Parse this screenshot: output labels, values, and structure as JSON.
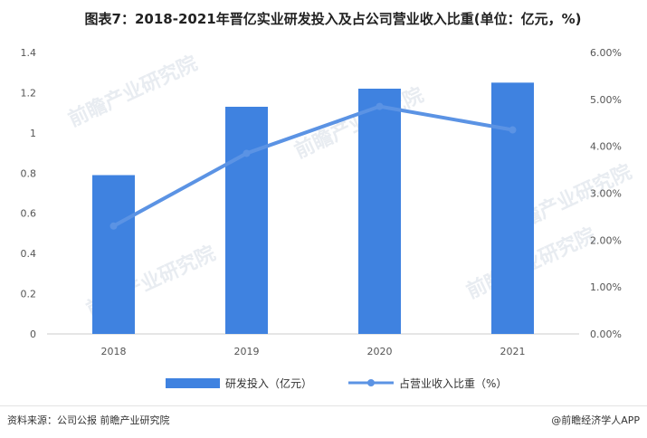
{
  "chart_data": {
    "type": "bar+line",
    "title": "图表7：2018-2021年晋亿实业研发投入及占公司营业收入比重(单位：亿元，%)",
    "categories": [
      "2018",
      "2019",
      "2020",
      "2021"
    ],
    "series": [
      {
        "name": "研发投入（亿元）",
        "type": "bar",
        "axis": "left",
        "values": [
          0.79,
          1.13,
          1.22,
          1.25
        ],
        "color": "#3f82e0"
      },
      {
        "name": "占营业收入比重（%）",
        "type": "line",
        "axis": "right",
        "values": [
          2.3,
          3.85,
          4.85,
          4.35
        ],
        "color": "#5b93e4"
      }
    ],
    "y_left": {
      "min": 0,
      "max": 1.4,
      "ticks": [
        "0",
        "0.2",
        "0.4",
        "0.6",
        "0.8",
        "1",
        "1.2",
        "1.4"
      ]
    },
    "y_right": {
      "min": 0,
      "max": 6,
      "ticks": [
        "0.00%",
        "1.00%",
        "2.00%",
        "3.00%",
        "4.00%",
        "5.00%",
        "6.00%"
      ]
    },
    "grid": false,
    "legend_position": "bottom"
  },
  "footer": {
    "source": "资料来源：公司公报 前瞻产业研究院",
    "brand": "@前瞻经济学人APP"
  }
}
